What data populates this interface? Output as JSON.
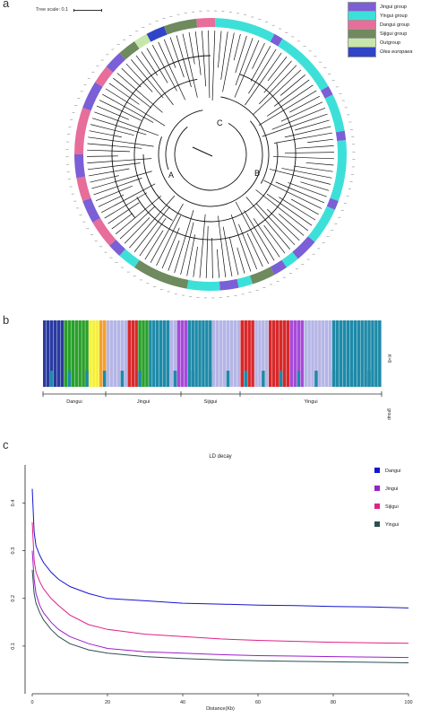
{
  "panel_labels": {
    "a": "a",
    "b": "b",
    "c": "c"
  },
  "tree": {
    "scale_label": "Tree scale: 0.1",
    "clade_labels": [
      "A",
      "B",
      "C"
    ],
    "legend": [
      {
        "label": "Jingui group",
        "color": "#7b5fd6"
      },
      {
        "label": "Yingui group",
        "color": "#3de0d8"
      },
      {
        "label": "Dangui group",
        "color": "#e76e9a"
      },
      {
        "label": "Sijigui group",
        "color": "#6e8a5e"
      },
      {
        "label": "Outgroup",
        "color": "#c7e6a9"
      },
      {
        "label": "Olea europaea",
        "color": "#3044c8"
      }
    ]
  },
  "structure": {
    "k_label": "K=8",
    "group_axis_label": "group",
    "groups": [
      "Dangui",
      "Jingui",
      "Sijigui",
      "Yingui"
    ],
    "colors": {
      "navy": "#2a3aa0",
      "green": "#2aa02a",
      "yellow": "#f5f03a",
      "orange": "#f3a030",
      "lavender": "#b5b5e6",
      "red": "#d8282a",
      "teal": "#1e8aa8",
      "purple": "#a64ad8"
    }
  },
  "chart_data": {
    "type": "line",
    "title": "LD decay",
    "xlabel": "Distance(Kb)",
    "ylabel": "",
    "xlim": [
      0,
      100
    ],
    "ylim": [
      0,
      0.48
    ],
    "x_ticks": [
      0,
      20,
      40,
      60,
      80,
      100
    ],
    "y_ticks": [
      0.1,
      0.2,
      0.3,
      0.4
    ],
    "legend_position": "top-right",
    "series": [
      {
        "name": "Dangui",
        "color": "#1515d0",
        "x": [
          0,
          0.5,
          1,
          2,
          3,
          5,
          7,
          10,
          15,
          20,
          30,
          40,
          50,
          60,
          70,
          80,
          90,
          100
        ],
        "y": [
          0.43,
          0.34,
          0.31,
          0.29,
          0.275,
          0.255,
          0.24,
          0.225,
          0.21,
          0.2,
          0.195,
          0.19,
          0.188,
          0.186,
          0.185,
          0.183,
          0.182,
          0.18
        ]
      },
      {
        "name": "Jingui",
        "color": "#9a1fc8",
        "x": [
          0,
          0.5,
          1,
          2,
          3,
          5,
          7,
          10,
          15,
          20,
          30,
          40,
          50,
          60,
          70,
          80,
          90,
          100
        ],
        "y": [
          0.3,
          0.24,
          0.21,
          0.185,
          0.17,
          0.15,
          0.135,
          0.12,
          0.105,
          0.095,
          0.088,
          0.085,
          0.082,
          0.08,
          0.079,
          0.078,
          0.077,
          0.076
        ]
      },
      {
        "name": "Sijigui",
        "color": "#e0208a",
        "x": [
          0,
          0.5,
          1,
          2,
          3,
          5,
          7,
          10,
          15,
          20,
          30,
          40,
          50,
          60,
          70,
          80,
          90,
          100
        ],
        "y": [
          0.36,
          0.28,
          0.255,
          0.235,
          0.22,
          0.2,
          0.185,
          0.165,
          0.145,
          0.135,
          0.125,
          0.12,
          0.115,
          0.112,
          0.11,
          0.108,
          0.107,
          0.106
        ]
      },
      {
        "name": "Yingui",
        "color": "#2f4f4f",
        "x": [
          0,
          0.5,
          1,
          2,
          3,
          5,
          7,
          10,
          15,
          20,
          30,
          40,
          50,
          60,
          70,
          80,
          90,
          100
        ],
        "y": [
          0.26,
          0.21,
          0.19,
          0.17,
          0.155,
          0.135,
          0.12,
          0.105,
          0.092,
          0.085,
          0.078,
          0.074,
          0.071,
          0.069,
          0.068,
          0.067,
          0.066,
          0.065
        ]
      }
    ]
  }
}
